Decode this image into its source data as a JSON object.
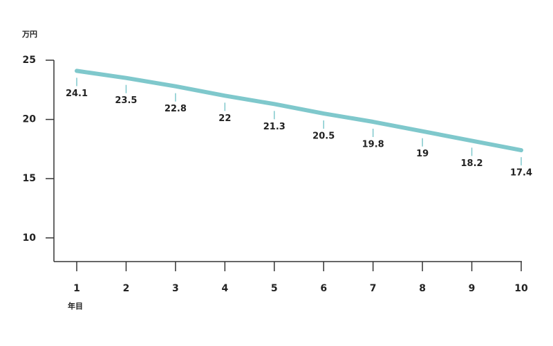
{
  "chart_data": {
    "type": "line",
    "y_unit": "万円",
    "x_label": "年目",
    "categories": [
      "1",
      "2",
      "3",
      "4",
      "5",
      "6",
      "7",
      "8",
      "9",
      "10"
    ],
    "values": [
      24.1,
      23.5,
      22.8,
      22,
      21.3,
      20.5,
      19.8,
      19,
      18.2,
      17.4
    ],
    "color": "#7fc8cc",
    "ylim": [
      8,
      25
    ],
    "yticks": [
      10,
      15,
      20,
      25
    ]
  }
}
